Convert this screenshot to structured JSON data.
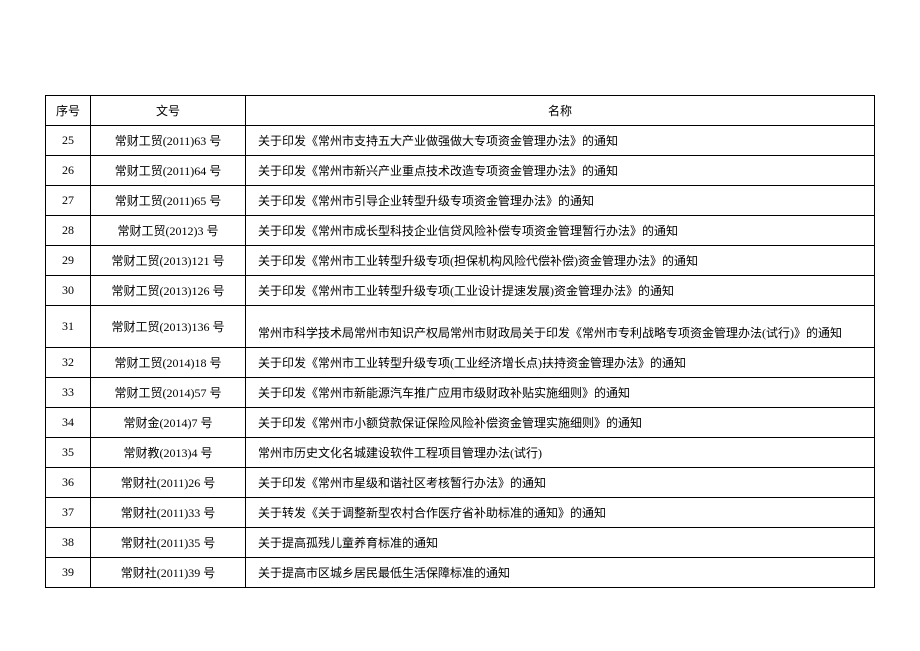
{
  "table": {
    "headers": {
      "seq": "序号",
      "docnum": "文号",
      "name": "名称"
    },
    "rows": [
      {
        "seq": "25",
        "docnum": "常财工贸(2011)63 号",
        "name": "关于印发《常州市支持五大产业做强做大专项资金管理办法》的通知"
      },
      {
        "seq": "26",
        "docnum": "常财工贸(2011)64 号",
        "name": "关于印发《常州市新兴产业重点技术改造专项资金管理办法》的通知"
      },
      {
        "seq": "27",
        "docnum": "常财工贸(2011)65 号",
        "name": "关于印发《常州市引导企业转型升级专项资金管理办法》的通知"
      },
      {
        "seq": "28",
        "docnum": "常财工贸(2012)3 号",
        "name": "关于印发《常州市成长型科技企业信贷风险补偿专项资金管理暂行办法》的通知"
      },
      {
        "seq": "29",
        "docnum": "常财工贸(2013)121 号",
        "name": "关于印发《常州市工业转型升级专项(担保机构风险代偿补偿)资金管理办法》的通知"
      },
      {
        "seq": "30",
        "docnum": "常财工贸(2013)126 号",
        "name": "关于印发《常州市工业转型升级专项(工业设计提速发展)资金管理办法》的通知"
      },
      {
        "seq": "31",
        "docnum": "常财工贸(2013)136 号",
        "name": "常州市科学技术局常州市知识产权局常州市财政局关于印发《常州市专利战略专项资金管理办法(试行)》的通知",
        "tall": true
      },
      {
        "seq": "32",
        "docnum": "常财工贸(2014)18 号",
        "name": "关于印发《常州市工业转型升级专项(工业经济增长点)扶持资金管理办法》的通知"
      },
      {
        "seq": "33",
        "docnum": "常财工贸(2014)57 号",
        "name": "关于印发《常州市新能源汽车推广应用市级财政补贴实施细则》的通知"
      },
      {
        "seq": "34",
        "docnum": "常财金(2014)7 号",
        "name": "关于印发《常州市小额贷款保证保险风险补偿资金管理实施细则》的通知"
      },
      {
        "seq": "35",
        "docnum": "常财教(2013)4 号",
        "name": "常州市历史文化名城建设软件工程项目管理办法(试行)"
      },
      {
        "seq": "36",
        "docnum": "常财社(2011)26 号",
        "name": "关于印发《常州市星级和谐社区考核暂行办法》的通知"
      },
      {
        "seq": "37",
        "docnum": "常财社(2011)33 号",
        "name": "关于转发《关于调整新型农村合作医疗省补助标准的通知》的通知"
      },
      {
        "seq": "38",
        "docnum": "常财社(2011)35 号",
        "name": "关于提高孤残儿童养育标准的通知"
      },
      {
        "seq": "39",
        "docnum": "常财社(2011)39 号",
        "name": "关于提高市区城乡居民最低生活保障标准的通知"
      }
    ]
  }
}
